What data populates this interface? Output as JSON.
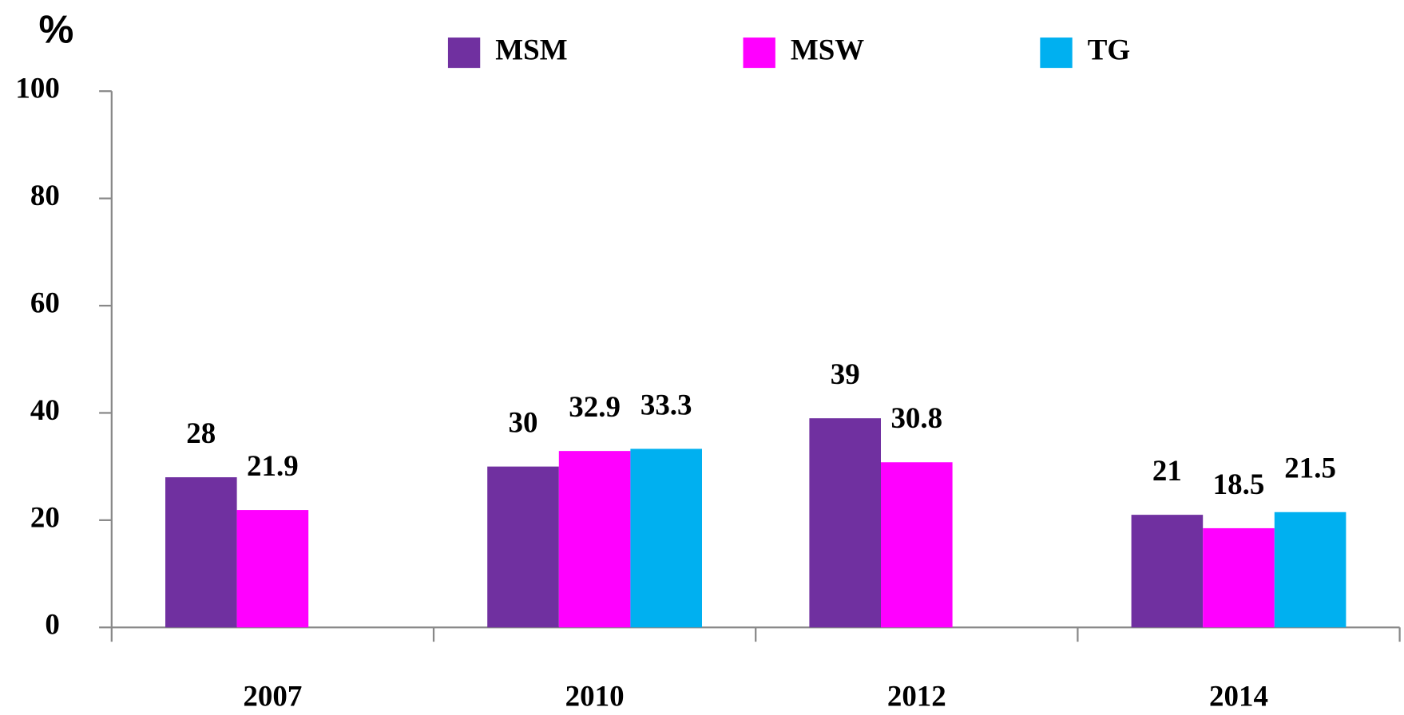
{
  "chart_data": {
    "type": "bar",
    "y_label": "%",
    "categories": [
      "2007",
      "2010",
      "2012",
      "2014"
    ],
    "series": [
      {
        "name": "MSM",
        "color": "#7030a0",
        "values": [
          28,
          30,
          39,
          21
        ]
      },
      {
        "name": "MSW",
        "color": "#ff00ff",
        "values": [
          21.9,
          32.9,
          30.8,
          18.5
        ]
      },
      {
        "name": "TG",
        "color": "#00b0f0",
        "values": [
          null,
          33.3,
          null,
          21.5
        ]
      }
    ],
    "ylim": [
      0,
      100
    ],
    "yticks": [
      0,
      20,
      40,
      60,
      80,
      100
    ],
    "legend": "top",
    "data_labels": true
  }
}
